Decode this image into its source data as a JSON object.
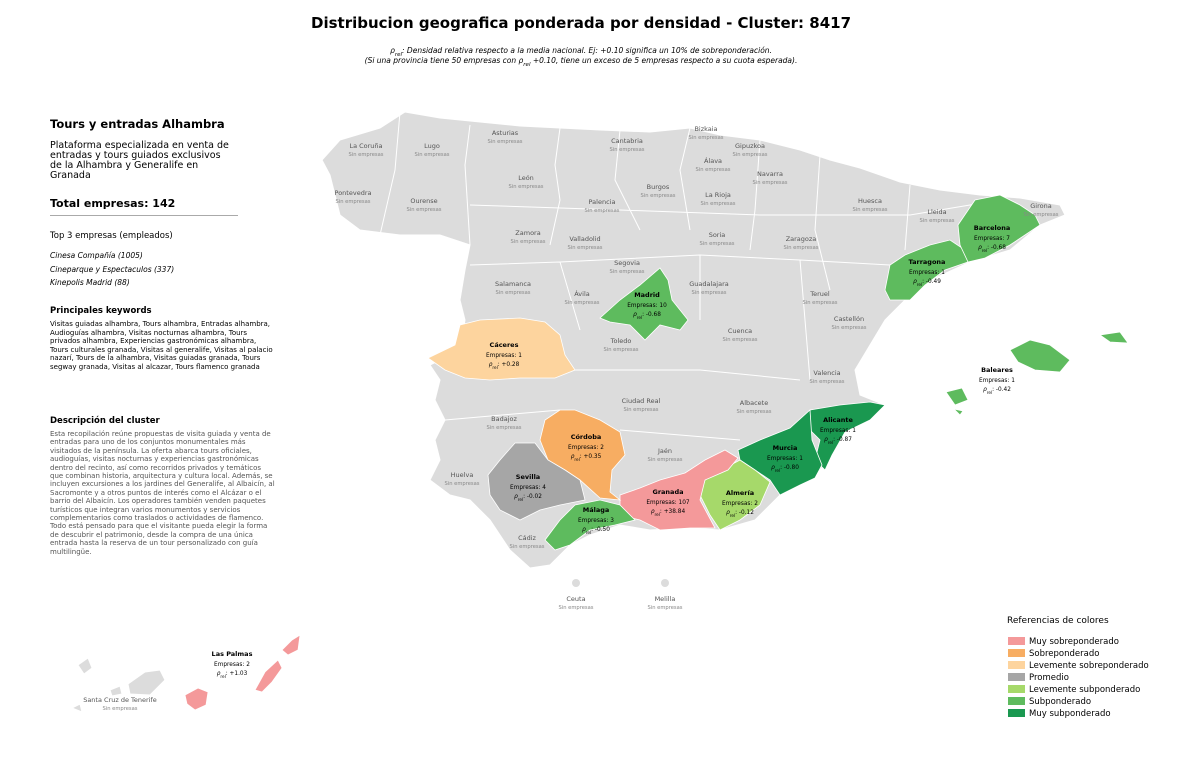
{
  "title": "Distribucion geografica ponderada por densidad - Cluster: 8417",
  "subtitle": [
    [
      {
        "text": "ρ"
      },
      {
        "text": "rel",
        "sub": true
      },
      {
        "text": ": Densidad relativa respecto a la media nacional. Ej: +0.10 significa un 10% de sobreponderación."
      }
    ],
    [
      {
        "text": "(Si una provincia tiene 50 empresas con "
      },
      {
        "text": "ρ"
      },
      {
        "text": "rel",
        "sub": true
      },
      {
        "text": " +0.10, tiene un exceso de 5 empresas respecto a su cuota esperada)."
      }
    ]
  ],
  "sidebar": {
    "name": "Tours y entradas Alhambra",
    "tagline": "Plataforma especializada en venta de entradas y tours guiados exclusivos de la Alhambra y Generalife en Granada",
    "total": "Total empresas: 142",
    "top_heading": "Top 3 empresas (empleados)",
    "top": [
      "Cinesa Compañía (1005)",
      "Cineparque y Espectaculos (337)",
      "Kinepolis Madrid (88)"
    ],
    "keywords_heading": "Principales keywords",
    "keywords": "Visitas guiadas alhambra, Tours alhambra, Entradas alhambra, Audioguías alhambra, Visitas nocturnas alhambra, Tours privados alhambra, Experiencias gastronómicas alhambra, Tours culturales granada, Visitas al generalife, Visitas al palacio nazarí, Tours de la alhambra, Visitas guiadas granada, Tours segway granada, Visitas al alcazar, Tours flamenco granada",
    "description_heading": "Descripción del cluster",
    "description": "Esta recopilación reúne propuestas de visita guiada y venta de entradas para uno de los conjuntos monumentales más visitados de la península. La oferta abarca tours oficiales, audioguías, visitas nocturnas y experiencias gastronómicas dentro del recinto, así como recorridos privados y temáticos que combinan historia, arquitectura y cultura local. Además, se incluyen excursiones a los jardines del Generalife, al Albaicín, al Sacromonte y a otros puntos de interés como el Alcázar o el barrio del Albaicín. Los operadores también venden paquetes turísticos que integran varios monumentos y servicios complementarios como traslados o actividades de flamenco. Todo está pensado para que el visitante pueda elegir la forma de descubrir el patrimonio, desde la compra de una única entrada hasta la reserva de un tour personalizado con guía multilingüe."
  },
  "rho_symbol": "ρ",
  "rho_sub": "rel",
  "empty_label": "Sin empresas",
  "empty_provinces": [
    "La Coruña",
    "Lugo",
    "Asturias",
    "Cantabria",
    "Bizkaia",
    "Gipuzkoa",
    "Álava",
    "Navarra",
    "Pontevedra",
    "Ourense",
    "León",
    "Palencia",
    "Burgos",
    "La Rioja",
    "Huesca",
    "Lleida",
    "Girona",
    "Zamora",
    "Valladolid",
    "Soria",
    "Zaragoza",
    "Segovia",
    "Salamanca",
    "Ávila",
    "Guadalajara",
    "Teruel",
    "Castellón",
    "Cuenca",
    "Toledo",
    "Valencia",
    "Ciudad Real",
    "Albacete",
    "Badajoz",
    "Jaén",
    "Huelva",
    "Cádiz",
    "Ceuta",
    "Melilla",
    "Santa Cruz de Tenerife"
  ],
  "provinces": [
    {
      "name": "Madrid",
      "count": "Empresas: 10",
      "rho_text": ": -0.68",
      "color": "#5ebb5e"
    },
    {
      "name": "Cáceres",
      "count": "Empresas: 1",
      "rho_text": ": +0.28",
      "color": "#fdd49e"
    },
    {
      "name": "Tarragona",
      "count": "Empresas: 1",
      "rho_text": ": -0.49",
      "color": "#5ebb5e"
    },
    {
      "name": "Barcelona",
      "count": "Empresas: 7",
      "rho_text": ": -0.68",
      "color": "#5ebb5e"
    },
    {
      "name": "Baleares",
      "count": "Empresas: 1",
      "rho_text": ": -0.42",
      "color": "#5ebb5e"
    },
    {
      "name": "Alicante",
      "count": "Empresas: 1",
      "rho_text": ": -0.87",
      "color": "#1a9850"
    },
    {
      "name": "Murcia",
      "count": "Empresas: 1",
      "rho_text": ": -0.80",
      "color": "#1a9850"
    },
    {
      "name": "Almería",
      "count": "Empresas: 2",
      "rho_text": ": -0.12",
      "color": "#a6d96a"
    },
    {
      "name": "Granada",
      "count": "Empresas: 107",
      "rho_text": ": +38.84",
      "color": "#f4999a"
    },
    {
      "name": "Córdoba",
      "count": "Empresas: 2",
      "rho_text": ": +0.35",
      "color": "#f7ad62"
    },
    {
      "name": "Sevilla",
      "count": "Empresas: 4",
      "rho_text": ": -0.02",
      "color": "#a6a6a6"
    },
    {
      "name": "Málaga",
      "count": "Empresas: 3",
      "rho_text": ": -0.50",
      "color": "#5ebb5e"
    },
    {
      "name": "Las Palmas",
      "count": "Empresas: 2",
      "rho_text": ": +1.03",
      "color": "#f4999a"
    }
  ],
  "legend": {
    "title": "Referencias de colores",
    "items": [
      {
        "label": "Muy sobreponderado",
        "color": "#f4999a"
      },
      {
        "label": "Sobreponderado",
        "color": "#f7ad62"
      },
      {
        "label": "Levemente sobreponderado",
        "color": "#fdd49e"
      },
      {
        "label": "Promedio",
        "color": "#a6a6a6"
      },
      {
        "label": "Levemente subponderado",
        "color": "#a6d96a"
      },
      {
        "label": "Subponderado",
        "color": "#5ebb5e"
      },
      {
        "label": "Muy subponderado",
        "color": "#1a9850"
      }
    ]
  }
}
